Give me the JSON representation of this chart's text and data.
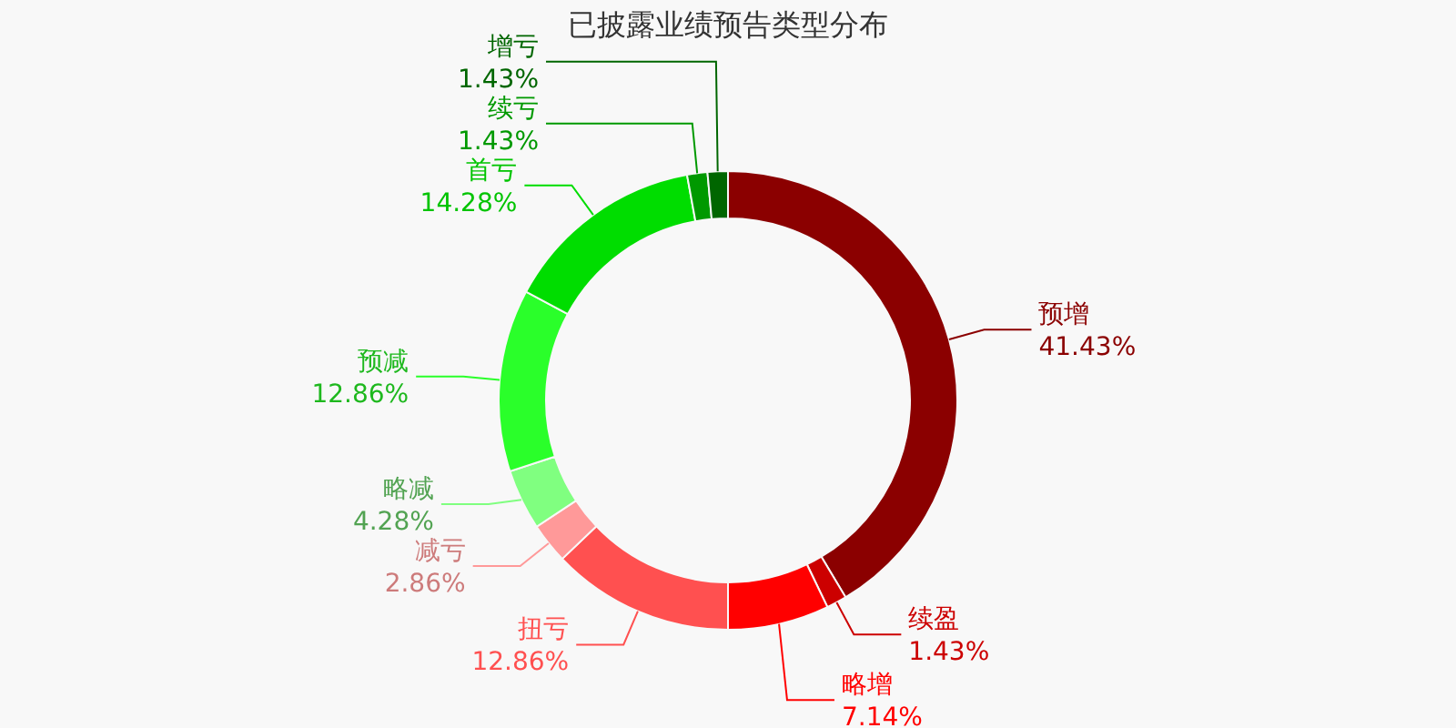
{
  "chart_data": {
    "type": "donut",
    "title": "已披露业绩预告类型分布",
    "categories": [
      "预增",
      "续盈",
      "略增",
      "扭亏",
      "减亏",
      "略减",
      "预减",
      "首亏",
      "续亏",
      "增亏"
    ],
    "values": [
      41.43,
      1.43,
      7.14,
      12.86,
      2.86,
      4.28,
      12.86,
      14.28,
      1.43,
      1.43
    ],
    "value_labels": [
      "41.43%",
      "1.43%",
      "7.14%",
      "12.86%",
      "2.86%",
      "4.28%",
      "12.86%",
      "14.28%",
      "1.43%",
      "1.43%"
    ],
    "colors": [
      "#8b0000",
      "#cc0000",
      "#ff0000",
      "#ff5050",
      "#ff9999",
      "#80ff80",
      "#2aff2a",
      "#00dd00",
      "#009900",
      "#006600"
    ]
  }
}
